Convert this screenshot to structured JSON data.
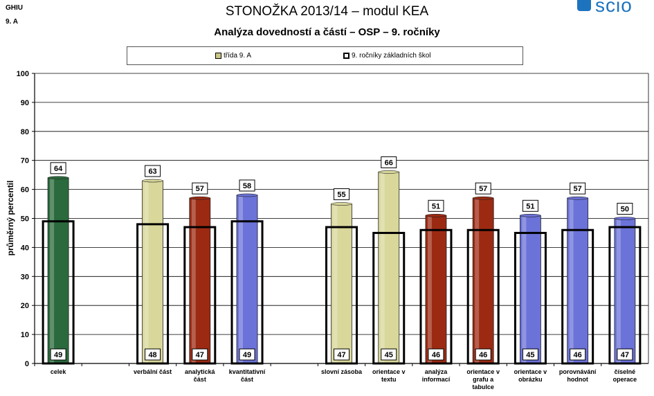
{
  "header": {
    "corner_top": "GHIU",
    "corner_bottom": "9. A",
    "title": "STONOŽKA 2013/14 – modul KEA",
    "subtitle": "Analýza dovedností a částí – OSP – 9. ročníky",
    "logo_text": "scio"
  },
  "legend": {
    "class_label": "třída 9. A",
    "schools_label": "9. ročníky základních škol"
  },
  "colors": {
    "green": "#2a6a3c",
    "yellow": "#d9d79a",
    "red": "#9c2a12",
    "blue": "#6b72d8",
    "outline": "#000000",
    "grid": "#000000",
    "logo": "#1e73be"
  },
  "chart_data": {
    "type": "bar",
    "ylabel": "průměrný percentil",
    "ylim": [
      0,
      100
    ],
    "ytick_step": 10,
    "grid": true,
    "legend_position": "top",
    "categories": [
      {
        "label": [
          "celek"
        ],
        "class_value": 64,
        "schools_value": 49,
        "color": "green"
      },
      {
        "label": [],
        "class_value": null,
        "schools_value": null,
        "color": null
      },
      {
        "label": [
          "verbální část"
        ],
        "class_value": 63,
        "schools_value": 48,
        "color": "yellow"
      },
      {
        "label": [
          "analytická",
          "část"
        ],
        "class_value": 57,
        "schools_value": 47,
        "color": "red"
      },
      {
        "label": [
          "kvantitativní",
          "část"
        ],
        "class_value": 58,
        "schools_value": 49,
        "color": "blue"
      },
      {
        "label": [],
        "class_value": null,
        "schools_value": null,
        "color": null
      },
      {
        "label": [
          "slovní zásoba"
        ],
        "class_value": 55,
        "schools_value": 47,
        "color": "yellow"
      },
      {
        "label": [
          "orientace v",
          "textu"
        ],
        "class_value": 66,
        "schools_value": 45,
        "color": "yellow"
      },
      {
        "label": [
          "analýza",
          "informací"
        ],
        "class_value": 51,
        "schools_value": 46,
        "color": "red"
      },
      {
        "label": [
          "orientace v",
          "grafu a",
          "tabulce"
        ],
        "class_value": 57,
        "schools_value": 46,
        "color": "red"
      },
      {
        "label": [
          "orientace v",
          "obrázku"
        ],
        "class_value": 51,
        "schools_value": 45,
        "color": "blue"
      },
      {
        "label": [
          "porovnávání",
          "hodnot"
        ],
        "class_value": 57,
        "schools_value": 46,
        "color": "blue"
      },
      {
        "label": [
          "číselné",
          "operace"
        ],
        "class_value": 50,
        "schools_value": 47,
        "color": "blue"
      }
    ]
  }
}
